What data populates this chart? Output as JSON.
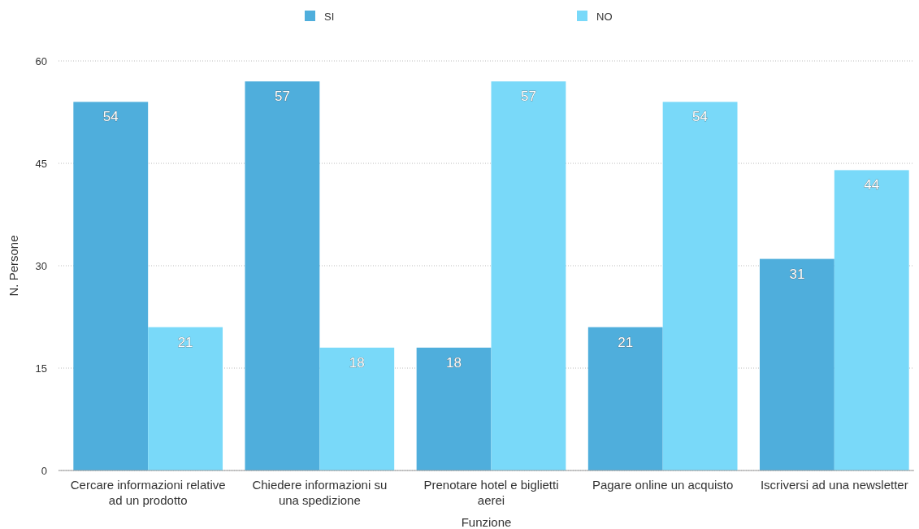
{
  "chart_data": {
    "type": "bar",
    "xlabel": "Funzione",
    "ylabel": "N. Persone",
    "categories": [
      "Cercare informazioni relative ad un prodotto",
      "Chiedere informazioni su una spedizione",
      "Prenotare hotel e biglietti aerei",
      "Pagare online un acquisto",
      "Iscriversi ad una newsletter"
    ],
    "series": [
      {
        "name": "SI",
        "color": "#4faedc",
        "values": [
          54,
          57,
          18,
          21,
          31
        ]
      },
      {
        "name": "NO",
        "color": "#79d9f9",
        "values": [
          21,
          18,
          57,
          54,
          44
        ]
      }
    ],
    "ylim": [
      0,
      60
    ],
    "yticks": [
      0,
      15,
      30,
      45,
      60
    ],
    "grid": "y",
    "legend": "top",
    "data_labels": true
  }
}
